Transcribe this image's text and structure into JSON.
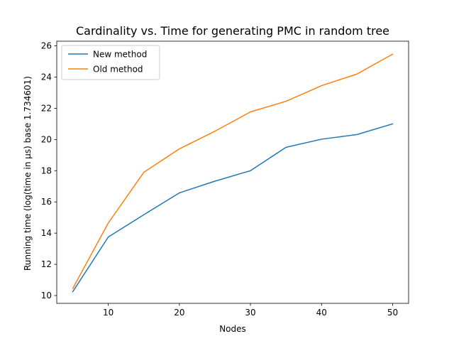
{
  "chart_data": {
    "type": "line",
    "title": "Cardinality vs. Time for generating PMC in random tree",
    "xlabel": "Nodes",
    "ylabel": "Running time (log(time in μs) base 1.734601)",
    "x": [
      5,
      10,
      15,
      20,
      25,
      30,
      35,
      40,
      45,
      50
    ],
    "xlim": [
      2.75,
      52.25
    ],
    "ylim": [
      9.5,
      26.3
    ],
    "xticks": [
      10,
      20,
      30,
      40,
      50
    ],
    "yticks": [
      10,
      12,
      14,
      16,
      18,
      20,
      22,
      24,
      26
    ],
    "grid": false,
    "legend_position": "upper-left",
    "series": [
      {
        "name": "New method",
        "color": "#1f77b4",
        "values": [
          10.25,
          13.75,
          15.18,
          16.58,
          17.33,
          18.0,
          19.5,
          20.02,
          20.32,
          21.0
        ]
      },
      {
        "name": "Old method",
        "color": "#ff7f0e",
        "values": [
          10.45,
          14.65,
          17.9,
          19.4,
          20.53,
          21.77,
          22.45,
          23.45,
          24.2,
          25.47
        ]
      }
    ]
  }
}
